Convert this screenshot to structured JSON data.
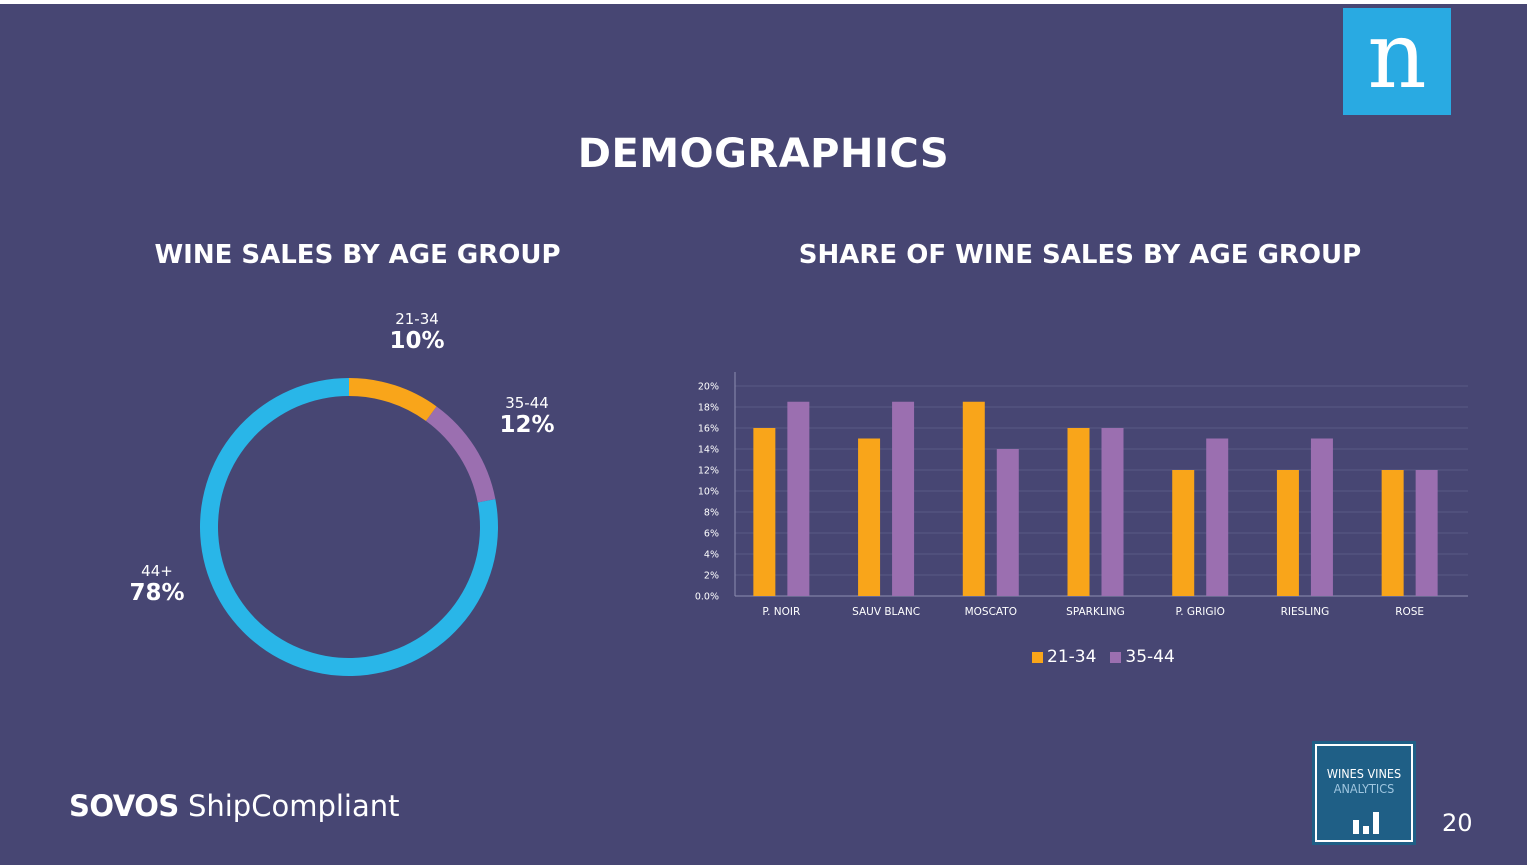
{
  "page": {
    "title": "DEMOGRAPHICS",
    "page_number": "20",
    "brand_logo_letter": "n",
    "footer_brand_bold": "SOVOS",
    "footer_brand_light": "ShipCompliant",
    "badge_line1": "WINES VINES",
    "badge_line2": "ANALYTICS"
  },
  "colors": {
    "background": "#474673",
    "series_21_34": "#f9a51a",
    "series_35_44": "#9b6fb0",
    "series_44_plus": "#29b6e8",
    "logo": "#29aae2"
  },
  "chart_data": [
    {
      "type": "pie",
      "title": "WINE SALES BY AGE GROUP",
      "slices": [
        {
          "label": "21-34",
          "value": 10,
          "value_text": "10%"
        },
        {
          "label": "35-44",
          "value": 12,
          "value_text": "12%"
        },
        {
          "label": "44+",
          "value": 78,
          "value_text": "78%"
        }
      ]
    },
    {
      "type": "bar",
      "title": "SHARE OF WINE SALES BY AGE GROUP",
      "categories": [
        "P. NOIR",
        "SAUV BLANC",
        "MOSCATO",
        "SPARKLING",
        "P. GRIGIO",
        "RIESLING",
        "ROSE"
      ],
      "series": [
        {
          "name": "21-34",
          "values": [
            16,
            15,
            18.5,
            16,
            12,
            12,
            12
          ]
        },
        {
          "name": "35-44",
          "values": [
            18.5,
            18.5,
            14,
            16,
            15,
            15,
            12
          ]
        }
      ],
      "ylim": [
        0,
        20
      ],
      "yticks": [
        "0.0%",
        "2%",
        "4%",
        "6%",
        "8%",
        "10%",
        "12%",
        "14%",
        "16%",
        "18%",
        "20%"
      ],
      "grid": true,
      "legend": "bottom"
    }
  ]
}
